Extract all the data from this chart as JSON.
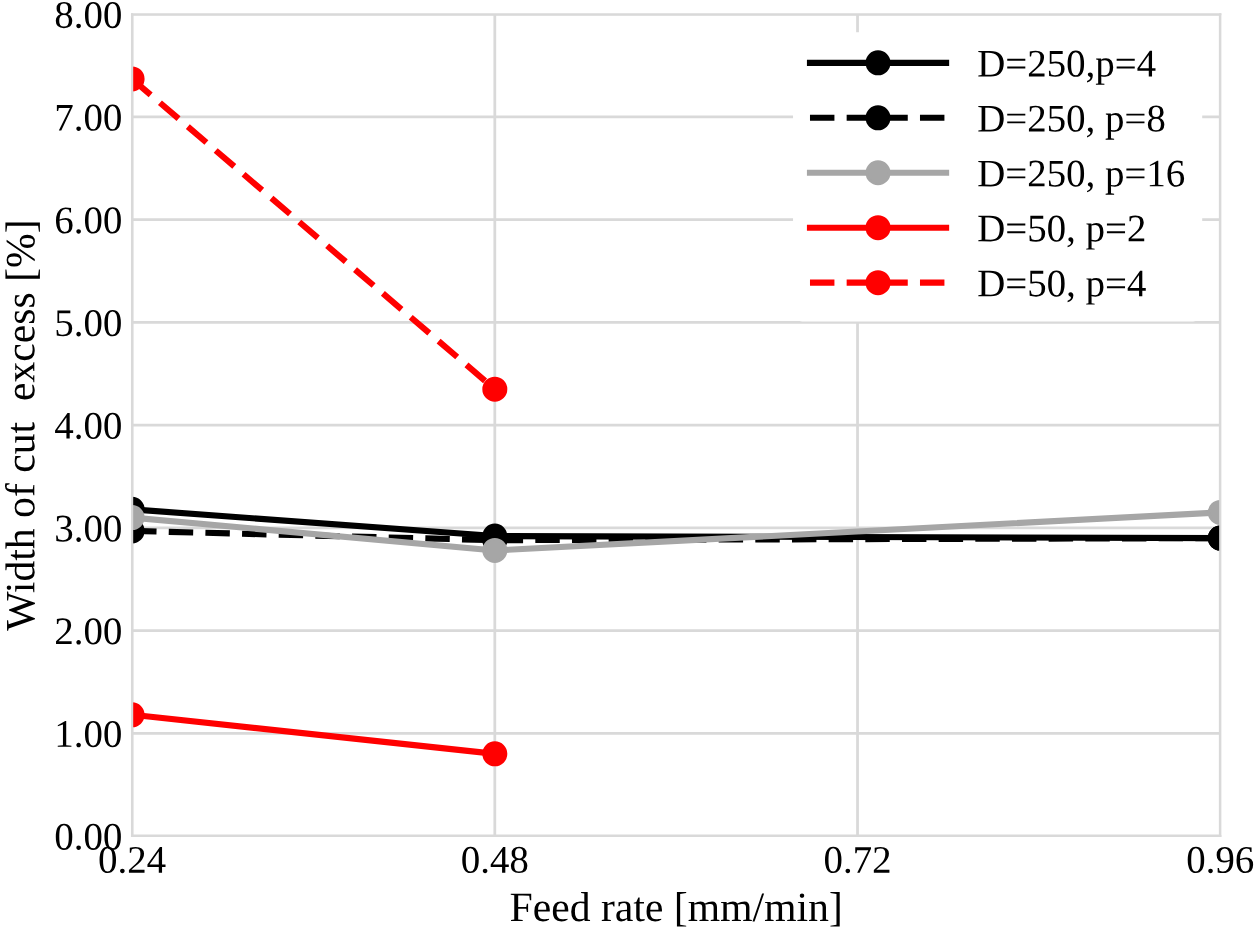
{
  "chart_data": {
    "type": "line",
    "xlabel": "Feed rate [mm/min]",
    "ylabel": "Width of cut  excess [%]",
    "xlim": [
      0.24,
      0.96
    ],
    "xticks": [
      {
        "value": 0.24,
        "label": "0.24"
      },
      {
        "value": 0.48,
        "label": "0.48"
      },
      {
        "value": 0.72,
        "label": "0.72"
      },
      {
        "value": 0.96,
        "label": "0.96"
      }
    ],
    "ylim": [
      0,
      8
    ],
    "yticks": [
      {
        "value": 0,
        "label": "0.00"
      },
      {
        "value": 1,
        "label": "1.00"
      },
      {
        "value": 2,
        "label": "2.00"
      },
      {
        "value": 3,
        "label": "3.00"
      },
      {
        "value": 4,
        "label": "4.00"
      },
      {
        "value": 5,
        "label": "5.00"
      },
      {
        "value": 6,
        "label": "6.00"
      },
      {
        "value": 7,
        "label": "7.00"
      },
      {
        "value": 8,
        "label": "8.00"
      }
    ],
    "grid": true,
    "legend": "top right",
    "marker": "circle",
    "series": [
      {
        "name": "D=250,p=4",
        "color": "#000000",
        "line_style": "solid",
        "x": [
          0.24,
          0.48,
          0.96
        ],
        "values": [
          3.18,
          2.92,
          2.9
        ]
      },
      {
        "name": "D=250, p=8",
        "color": "#000000",
        "line_style": "dashed",
        "x": [
          0.24,
          0.48,
          0.96
        ],
        "values": [
          2.97,
          2.88,
          2.9
        ]
      },
      {
        "name": "D=250, p=16",
        "color": "#a6a6a6",
        "line_style": "solid",
        "x": [
          0.24,
          0.48,
          0.96
        ],
        "values": [
          3.1,
          2.78,
          3.15
        ]
      },
      {
        "name": "D=50, p=2",
        "color": "#ff0000",
        "line_style": "solid",
        "x": [
          0.24,
          0.48
        ],
        "values": [
          1.18,
          0.8
        ]
      },
      {
        "name": "D=50, p=4",
        "color": "#ff0000",
        "line_style": "dashed",
        "x": [
          0.24,
          0.48
        ],
        "values": [
          7.37,
          4.35
        ]
      }
    ]
  }
}
